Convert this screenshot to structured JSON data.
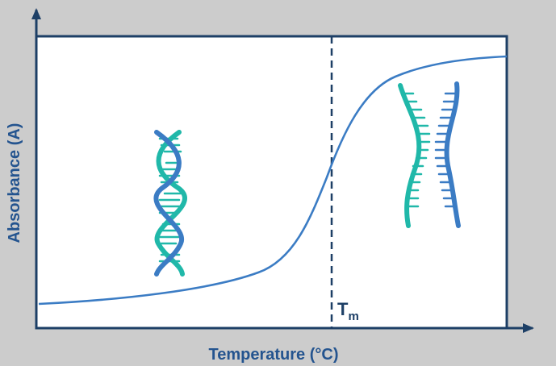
{
  "figure": {
    "x_axis_label": "Temperature (°C)",
    "y_axis_label": "Absorbance (A)",
    "marker_label_main": "T",
    "marker_label_sub": "m"
  },
  "colors": {
    "background": "#cccccc",
    "plot_fill": "#ffffff",
    "frame": "#1d3f66",
    "curve": "#3b7cc4",
    "dashed_line": "#1d3f66",
    "label_text": "#24548f",
    "teal_strand": "#20b8a9",
    "blue_strand": "#3b7cc4"
  },
  "icons": {
    "double_helix": "dna-double-helix-icon",
    "separated_strands": "single-strand-dna-icon"
  }
}
